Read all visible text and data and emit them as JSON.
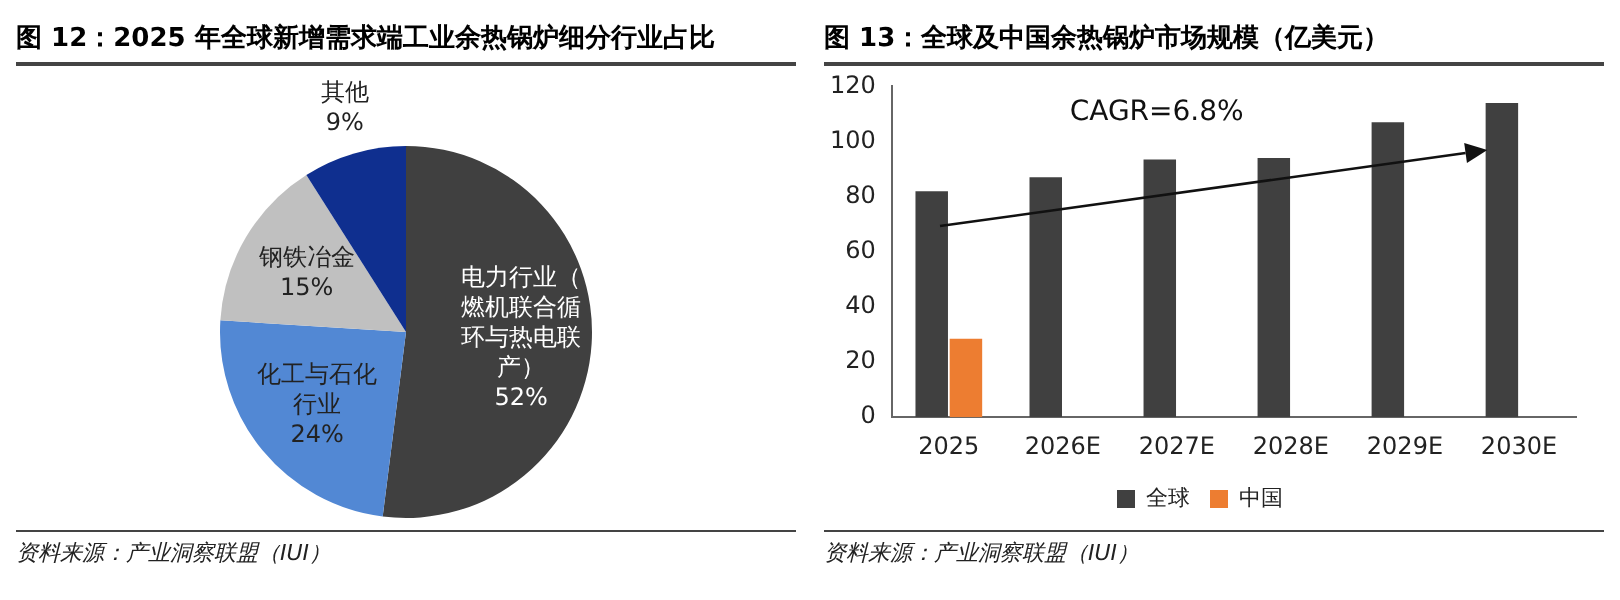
{
  "chart_data": [
    {
      "type": "pie",
      "title": "图 12：2025 年全球新增需求端工业余热锅炉细分行业占比",
      "categories": [
        "电力行业（燃机联合循环与热电联产）",
        "化工与石化行业",
        "钢铁冶金",
        "其他"
      ],
      "values": [
        52,
        24,
        15,
        9
      ],
      "colors": [
        "#404040",
        "#5288d4",
        "#c0c0c0",
        "#0f2f8f"
      ],
      "value_labels": [
        "52%",
        "24%",
        "15%",
        "9%"
      ],
      "annotations": [
        "资料来源：产业洞察联盟（IUI）"
      ]
    },
    {
      "type": "bar",
      "title": "图 13：全球及中国余热锅炉市场规模（亿美元）",
      "categories": [
        "2025",
        "2026E",
        "2027E",
        "2028E",
        "2029E",
        "2030E"
      ],
      "series": [
        {
          "name": "全球",
          "color": "#404040",
          "values": [
            82,
            87,
            93.5,
            94,
            107,
            114
          ]
        },
        {
          "name": "中国",
          "color": "#ed7d31",
          "values": [
            28.5,
            null,
            null,
            null,
            null,
            null
          ]
        }
      ],
      "ylim": [
        0,
        120
      ],
      "yticks": [
        0,
        20,
        40,
        60,
        80,
        100,
        120
      ],
      "legend": "bottom",
      "annotations": [
        "CAGR=6.8%",
        "资料来源：产业洞察联盟（IUI）"
      ]
    }
  ]
}
